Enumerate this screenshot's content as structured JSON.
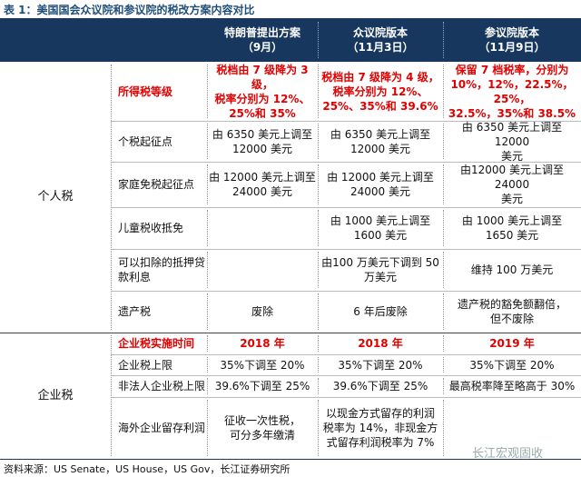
{
  "title": "表 1：美国国会众议院和参议院的税改方案内容对比",
  "table": {
    "header": [
      [
        "特朗普提出方案",
        "（9月）"
      ],
      [
        "众议院版本",
        "（11月3日）"
      ],
      [
        "参议院版本",
        "（11月9日）"
      ]
    ],
    "groups": [
      {
        "label": "个人税",
        "rows": [
          {
            "item": "所得税等级",
            "highlight": true,
            "cells": [
              [
                "税档由 7 级降为 3 级，",
                "税率分别为 12%、",
                "25%和 35%"
              ],
              [
                "税档由 7 级降为 4 级，",
                "税率分别为 12%、",
                "25%、35%和 39.6%"
              ],
              [
                "保留 7 档税率，分别为",
                "10%，12%，22.5%，25%，",
                "32.5%，35%和 38.5%"
              ]
            ]
          },
          {
            "item": "个税起征点",
            "cells": [
              [
                "由 6350 美元上调至",
                "12000 美元"
              ],
              [
                "由 6350 美元上调至",
                "12000 美元"
              ],
              [
                "由 6350 美元上调至 12000",
                "美元"
              ]
            ]
          },
          {
            "item": "家庭免税起征点",
            "cells": [
              [
                "由 12000 美元上调至",
                "24000 美元"
              ],
              [
                "由 12000 美元上调至",
                "24000 美元"
              ],
              [
                "由12000 美元上调至 24000",
                "美元"
              ]
            ]
          },
          {
            "item": "儿童税收抵免",
            "cells": [
              [],
              [
                "由 1000 美元上调至",
                "1600 美元"
              ],
              [
                "由 1000 美元上调至",
                "1650 美元"
              ]
            ]
          },
          {
            "item": "可以扣除的抵押贷款利息",
            "cells": [
              [],
              [
                "由100 万美元下调到 50",
                "万美元"
              ],
              [
                "维持 100 万美元"
              ]
            ]
          },
          {
            "item": "遗产税",
            "cells": [
              [
                "废除"
              ],
              [
                "6 年后废除"
              ],
              [
                "遗产税的豁免额翻倍，",
                "但不废除"
              ]
            ]
          }
        ]
      },
      {
        "label": "企业税",
        "rows": [
          {
            "item": "企业税实施时间",
            "highlight": true,
            "cells": [
              [
                "2018 年"
              ],
              [
                "2018 年"
              ],
              [
                "2019 年"
              ]
            ]
          },
          {
            "item": "企业税上限",
            "cells": [
              [
                "35%下调至 20%"
              ],
              [
                "35%下调至 20%"
              ],
              [
                "35%下调至 20%"
              ]
            ]
          },
          {
            "item": "非法人企业税上限",
            "cells": [
              [
                "39.6%下调至 25%"
              ],
              [
                "39.6%下调至 25%"
              ],
              [
                "最高税率降至略高于 30%"
              ]
            ]
          },
          {
            "item": "海外企业留存利润",
            "cells": [
              [
                "征收一次性税，",
                "可分多年缴清"
              ],
              [
                "以现金方式留存的利润",
                "税率为 14%，非现金方",
                "式留存利润税率为 7%"
              ],
              []
            ]
          }
        ]
      }
    ]
  },
  "source": "资料来源：US Senate，US House，US Gov，长江证券研究所",
  "watermark": "长江宏观固收"
}
